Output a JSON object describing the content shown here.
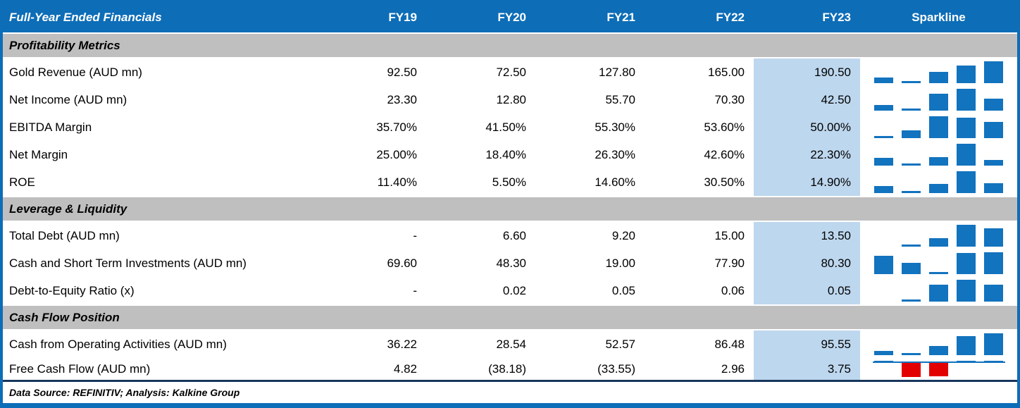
{
  "chart_data": {
    "type": "table",
    "title": "Full-Year Ended Financials",
    "column_headers": [
      "FY19",
      "FY20",
      "FY21",
      "FY22",
      "FY23",
      "Sparkline"
    ],
    "highlight_column": "FY23",
    "sparkline": {
      "type": "bar",
      "scaling": "per-row min-max",
      "negative_color": "#E30000"
    },
    "sections": [
      {
        "label": "Profitability Metrics",
        "rows": [
          {
            "label": "Gold Revenue (AUD mn)",
            "display": [
              "92.50",
              "72.50",
              "127.80",
              "165.00",
              "190.50"
            ],
            "values": [
              92.5,
              72.5,
              127.8,
              165.0,
              190.5
            ]
          },
          {
            "label": "Net Income (AUD mn)",
            "display": [
              "23.30",
              "12.80",
              "55.70",
              "70.30",
              "42.50"
            ],
            "values": [
              23.3,
              12.8,
              55.7,
              70.3,
              42.5
            ]
          },
          {
            "label": "EBITDA Margin",
            "display": [
              "35.70%",
              "41.50%",
              "55.30%",
              "53.60%",
              "50.00%"
            ],
            "values": [
              35.7,
              41.5,
              55.3,
              53.6,
              50.0
            ]
          },
          {
            "label": "Net Margin",
            "display": [
              "25.00%",
              "18.40%",
              "26.30%",
              "42.60%",
              "22.30%"
            ],
            "values": [
              25.0,
              18.4,
              26.3,
              42.6,
              22.3
            ]
          },
          {
            "label": "ROE",
            "display": [
              "11.40%",
              "5.50%",
              "14.60%",
              "30.50%",
              "14.90%"
            ],
            "values": [
              11.4,
              5.5,
              14.6,
              30.5,
              14.9
            ]
          }
        ]
      },
      {
        "label": "Leverage & Liquidity",
        "rows": [
          {
            "label": "Total Debt (AUD mn)",
            "display": [
              "-",
              "6.60",
              "9.20",
              "15.00",
              "13.50"
            ],
            "values": [
              null,
              6.6,
              9.2,
              15.0,
              13.5
            ]
          },
          {
            "label": "Cash and Short Term Investments (AUD mn)",
            "display": [
              "69.60",
              "48.30",
              "19.00",
              "77.90",
              "80.30"
            ],
            "values": [
              69.6,
              48.3,
              19.0,
              77.9,
              80.3
            ]
          },
          {
            "label": "Debt-to-Equity Ratio (x)",
            "display": [
              "-",
              "0.02",
              "0.05",
              "0.06",
              "0.05"
            ],
            "values": [
              null,
              0.02,
              0.05,
              0.06,
              0.05
            ]
          }
        ]
      },
      {
        "label": "Cash Flow Position",
        "rows": [
          {
            "label": "Cash from Operating Activities (AUD mn)",
            "display": [
              "36.22",
              "28.54",
              "52.57",
              "86.48",
              "95.55"
            ],
            "values": [
              36.22,
              28.54,
              52.57,
              86.48,
              95.55
            ]
          },
          {
            "label": "Free Cash Flow (AUD mn)",
            "display": [
              "4.82",
              "(38.18)",
              "(33.55)",
              "2.96",
              "3.75"
            ],
            "values": [
              4.82,
              -38.18,
              -33.55,
              2.96,
              3.75
            ]
          }
        ]
      }
    ],
    "footnote": "Data Source: REFINITIV; Analysis: Kalkine Group"
  },
  "colors": {
    "header_bg": "#0D6DB7",
    "section_bg": "#BFBFBF",
    "highlight_col_bg": "#BDD7EE",
    "spark_positive": "#1273BE",
    "spark_negative": "#E30000",
    "outer_border": "#0D6DB7",
    "footer_line": "#17365D"
  }
}
